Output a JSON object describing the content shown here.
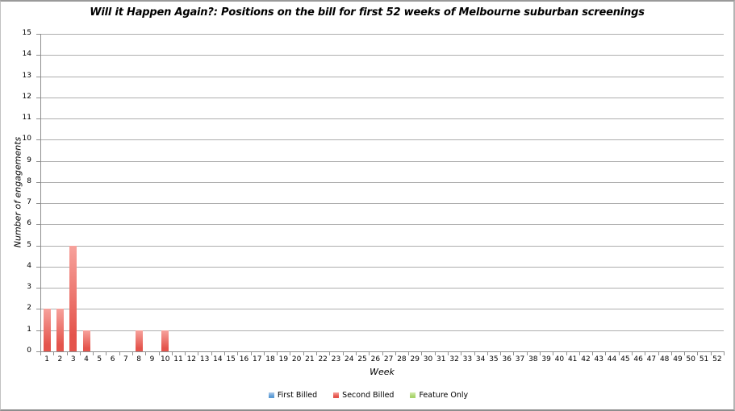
{
  "chart_data": {
    "type": "bar",
    "title": "Will it Happen Again?: Positions on the bill for first 52 weeks of Melbourne suburban screenings",
    "xlabel": "Week",
    "ylabel": "Number of engagements",
    "ylim": [
      0,
      15
    ],
    "y_tick_step": 1,
    "grid": true,
    "legend_position": "bottom",
    "categories": [
      1,
      2,
      3,
      4,
      5,
      6,
      7,
      8,
      9,
      10,
      11,
      12,
      13,
      14,
      15,
      16,
      17,
      18,
      19,
      20,
      21,
      22,
      23,
      24,
      25,
      26,
      27,
      28,
      29,
      30,
      31,
      32,
      33,
      34,
      35,
      36,
      37,
      38,
      39,
      40,
      41,
      42,
      43,
      44,
      45,
      46,
      47,
      48,
      49,
      50,
      51,
      52
    ],
    "series": [
      {
        "name": "First Billed",
        "color": "#5b9bd5",
        "color_light": "#aecbea",
        "values": [
          0,
          0,
          0,
          0,
          0,
          0,
          0,
          0,
          0,
          0,
          0,
          0,
          0,
          0,
          0,
          0,
          0,
          0,
          0,
          0,
          0,
          0,
          0,
          0,
          0,
          0,
          0,
          0,
          0,
          0,
          0,
          0,
          0,
          0,
          0,
          0,
          0,
          0,
          0,
          0,
          0,
          0,
          0,
          0,
          0,
          0,
          0,
          0,
          0,
          0,
          0,
          0
        ]
      },
      {
        "name": "Second Billed",
        "color": "#e4544c",
        "color_light": "#f7a29c",
        "values": [
          2,
          2,
          5,
          1,
          0,
          0,
          0,
          1,
          0,
          1,
          0,
          0,
          0,
          0,
          0,
          0,
          0,
          0,
          0,
          0,
          0,
          0,
          0,
          0,
          0,
          0,
          0,
          0,
          0,
          0,
          0,
          0,
          0,
          0,
          0,
          0,
          0,
          0,
          0,
          0,
          0,
          0,
          0,
          0,
          0,
          0,
          0,
          0,
          0,
          0,
          0,
          0
        ]
      },
      {
        "name": "Feature Only",
        "color": "#a8d46c",
        "color_light": "#d5ebb0",
        "values": [
          0,
          0,
          0,
          0,
          0,
          0,
          0,
          0,
          0,
          0,
          0,
          0,
          0,
          0,
          0,
          0,
          0,
          0,
          0,
          0,
          0,
          0,
          0,
          0,
          0,
          0,
          0,
          0,
          0,
          0,
          0,
          0,
          0,
          0,
          0,
          0,
          0,
          0,
          0,
          0,
          0,
          0,
          0,
          0,
          0,
          0,
          0,
          0,
          0,
          0,
          0,
          0
        ]
      }
    ]
  }
}
